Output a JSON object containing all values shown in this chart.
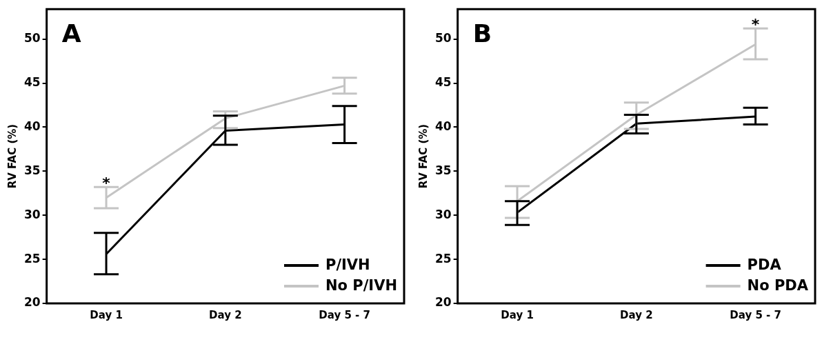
{
  "chart_data": [
    {
      "type": "line",
      "title": "A",
      "ylabel": "RV FAC (%)",
      "categories": [
        "Day 1",
        "Day 2",
        "Day 5 - 7"
      ],
      "ylim": [
        20,
        53.4
      ],
      "yticks": [
        20,
        25,
        30,
        35,
        40,
        45,
        50
      ],
      "legend": "bottom right",
      "marker": "none",
      "line_style": "solid",
      "series": [
        {
          "name": "P/IVH",
          "color": "#000000",
          "values": [
            25.6,
            39.6,
            40.3
          ],
          "errors": [
            [
              23.3,
              28.0
            ],
            [
              38.0,
              41.3
            ],
            [
              38.2,
              42.4
            ]
          ]
        },
        {
          "name": "No P/IVH",
          "color": "#c4c4c4",
          "values": [
            32.0,
            41.0,
            44.7
          ],
          "errors": [
            [
              30.8,
              33.2
            ],
            [
              39.9,
              41.8
            ],
            [
              43.8,
              45.6
            ]
          ]
        }
      ],
      "annotations": [
        {
          "text": "*",
          "x": "Day 1",
          "y": 33.2
        }
      ]
    },
    {
      "type": "line",
      "title": "B",
      "ylabel": "RV FAC (%)",
      "categories": [
        "Day 1",
        "Day 2",
        "Day 5 - 7"
      ],
      "ylim": [
        20,
        53.4
      ],
      "yticks": [
        20,
        25,
        30,
        35,
        40,
        45,
        50
      ],
      "legend": "bottom right",
      "marker": "none",
      "line_style": "solid",
      "series": [
        {
          "name": "PDA",
          "color": "#000000",
          "values": [
            30.3,
            40.4,
            41.2
          ],
          "errors": [
            [
              28.9,
              31.6
            ],
            [
              39.3,
              41.4
            ],
            [
              40.3,
              42.2
            ]
          ]
        },
        {
          "name": "No PDA",
          "color": "#c4c4c4",
          "values": [
            31.6,
            41.4,
            49.4
          ],
          "errors": [
            [
              29.7,
              33.3
            ],
            [
              39.8,
              42.8
            ],
            [
              47.7,
              51.2
            ]
          ]
        }
      ],
      "annotations": [
        {
          "text": "*",
          "x": "Day 5 - 7",
          "y": 51.2
        }
      ]
    }
  ]
}
